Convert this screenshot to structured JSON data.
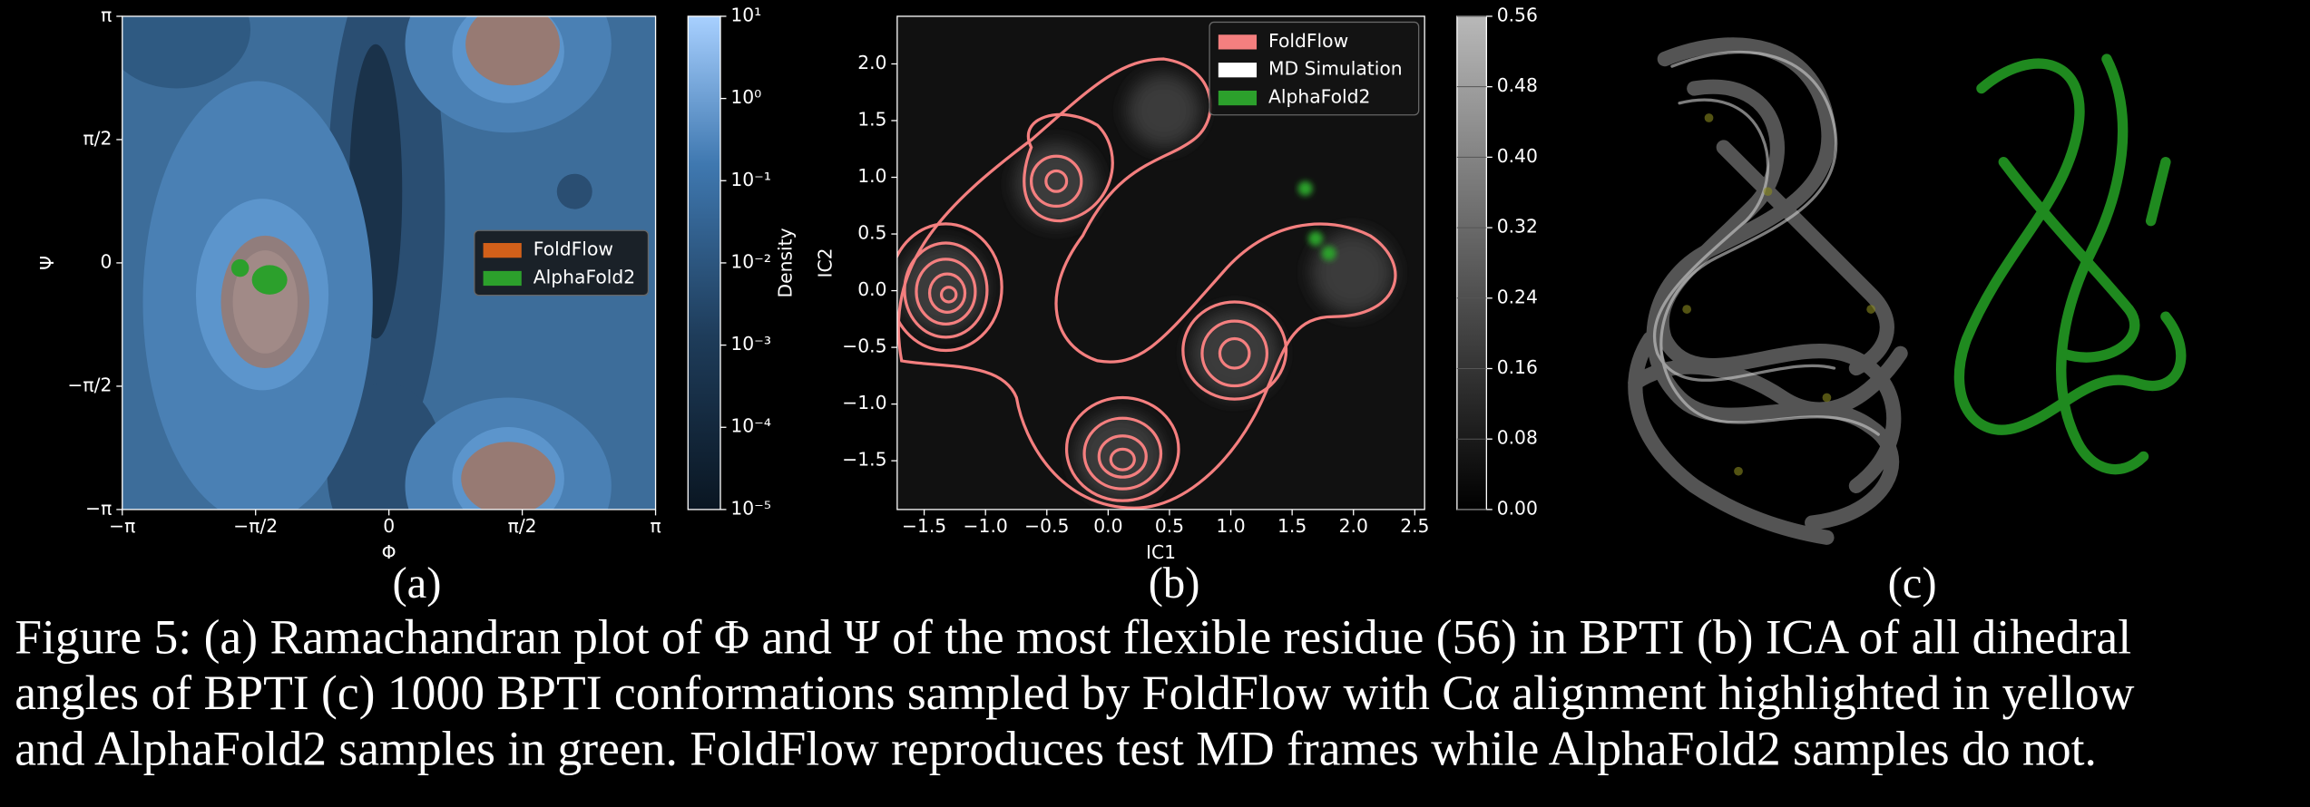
{
  "chart_data": [
    {
      "type": "contour",
      "panel_label": "(a)",
      "xlabel": "Φ",
      "ylabel": "Ψ",
      "xlim": [
        -3.14159,
        3.14159
      ],
      "ylim": [
        -3.14159,
        3.14159
      ],
      "xticks": [
        {
          "value": -3.14159,
          "label": "−π"
        },
        {
          "value": -1.5708,
          "label": "−π/2"
        },
        0,
        {
          "value": 1.5708,
          "label": "π/2"
        },
        {
          "value": 3.14159,
          "label": "π"
        }
      ],
      "yticks": [
        {
          "value": -3.14159,
          "label": "−π"
        },
        {
          "value": -1.5708,
          "label": "−π/2"
        },
        0,
        {
          "value": 1.5708,
          "label": "π/2"
        },
        {
          "value": 3.14159,
          "label": "π"
        }
      ],
      "legend": "center right",
      "series": [
        {
          "name": "FoldFlow",
          "color": "#d2601a"
        },
        {
          "name": "AlphaFold2",
          "color": "#2ca02c"
        }
      ],
      "colorbar": {
        "label": "Density",
        "log": true,
        "lim": [
          1e-05,
          10
        ],
        "ticks": [
          {
            "value": 10,
            "label": "10¹"
          },
          {
            "value": 1,
            "label": "10⁰"
          },
          {
            "value": 0.1,
            "label": "10⁻¹"
          },
          {
            "value": 0.01,
            "label": "10⁻²"
          },
          {
            "value": 0.001,
            "label": "10⁻³"
          },
          {
            "value": 0.0001,
            "label": "10⁻⁴"
          },
          {
            "value": 1e-05,
            "label": "10⁻⁵"
          }
        ]
      }
    },
    {
      "type": "contour",
      "panel_label": "(b)",
      "xlabel": "IC1",
      "ylabel": "IC2",
      "xlim": [
        -1.72,
        2.58
      ],
      "ylim": [
        -1.93,
        2.42
      ],
      "xticks": [
        {
          "value": -1.5,
          "label": "−1.5"
        },
        {
          "value": -1,
          "label": "−1.0"
        },
        {
          "value": -0.5,
          "label": "−0.5"
        },
        {
          "value": 0,
          "label": "0.0"
        },
        0.5,
        {
          "value": 1,
          "label": "1.0"
        },
        1.5,
        {
          "value": 2,
          "label": "2.0"
        },
        2.5
      ],
      "yticks": [
        {
          "value": -1.5,
          "label": "−1.5"
        },
        {
          "value": -1,
          "label": "−1.0"
        },
        {
          "value": -0.5,
          "label": "−0.5"
        },
        {
          "value": 0,
          "label": "0.0"
        },
        0.5,
        {
          "value": 1,
          "label": "1.0"
        },
        1.5,
        {
          "value": 2,
          "label": "2.0"
        }
      ],
      "legend": "upper right",
      "series": [
        {
          "name": "FoldFlow",
          "color": "#f47f7f"
        },
        {
          "name": "MD Simulation",
          "color": "#ffffff"
        },
        {
          "name": "AlphaFold2",
          "color": "#2ca02c"
        }
      ],
      "colorbar": {
        "log": false,
        "lim": [
          0,
          0.56
        ],
        "ticks": [
          {
            "value": 0,
            "label": "0.00"
          },
          {
            "value": 0.08,
            "label": "0.08"
          },
          {
            "value": 0.16,
            "label": "0.16"
          },
          {
            "value": 0.24,
            "label": "0.24"
          },
          {
            "value": 0.32,
            "label": "0.32"
          },
          {
            "value": 0.4,
            "label": "0.40"
          },
          {
            "value": 0.48,
            "label": "0.48"
          },
          {
            "value": 0.56,
            "label": "0.56"
          }
        ]
      }
    }
  ],
  "figure": {
    "panel_c_label": "(c)",
    "caption": [
      "Figure 5: (a) Ramachandran plot of Φ and Ψ of the most flexible residue (56) in BPTI (b) ICA of all dihedral",
      "angles of BPTI (c) 1000 BPTI conformations sampled by FoldFlow with Cα alignment highlighted in yellow",
      "and AlphaFold2 samples in green. FoldFlow reproduces test MD frames while AlphaFold2 samples do not."
    ]
  }
}
